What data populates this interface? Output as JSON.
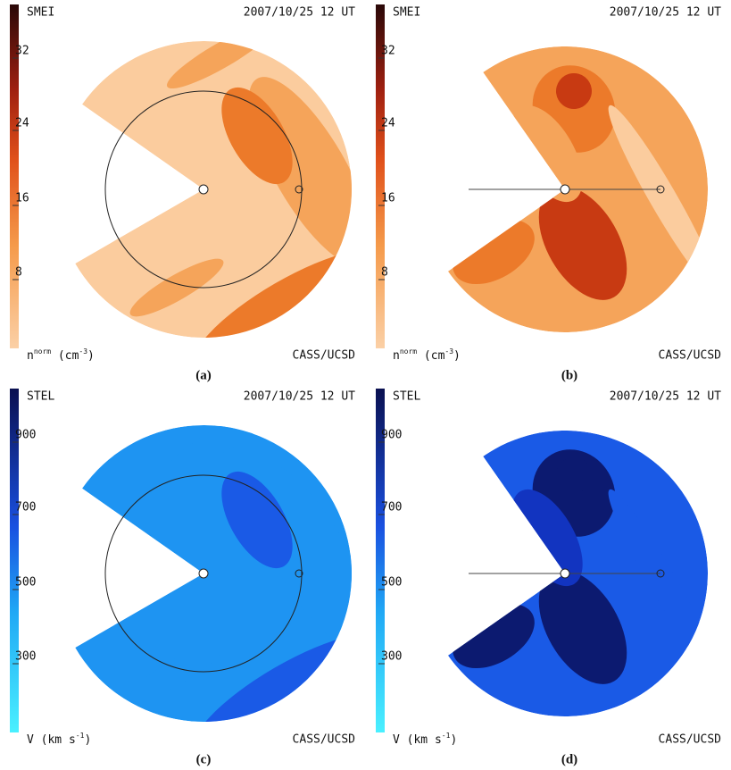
{
  "panels": [
    {
      "instrument": "SMEI",
      "date": "2007/10/25 12 UT",
      "colorbar_ticks": [
        32,
        24,
        16,
        8
      ],
      "unit": [
        "n",
        "norm",
        " (cm",
        "-3",
        ")"
      ],
      "credit": "CASS/UCSD",
      "caption": "(a)"
    },
    {
      "instrument": "SMEI",
      "date": "2007/10/25 12 UT",
      "colorbar_ticks": [
        32,
        24,
        16,
        8
      ],
      "unit": [
        "n",
        "norm",
        " (cm",
        "-3",
        ")"
      ],
      "credit": "CASS/UCSD",
      "caption": "(b)"
    },
    {
      "instrument": "STEL",
      "date": "2007/10/25 12 UT",
      "colorbar_ticks": [
        900,
        700,
        500,
        300
      ],
      "unit": [
        "V (km s",
        "-1",
        ")"
      ],
      "credit": "CASS/UCSD",
      "caption": "(c)"
    },
    {
      "instrument": "STEL",
      "date": "2007/10/25 12 UT",
      "colorbar_ticks": [
        900,
        700,
        500,
        300
      ],
      "unit": [
        "V (km s",
        "-1",
        ")"
      ],
      "credit": "CASS/UCSD",
      "caption": "(d)"
    }
  ]
}
